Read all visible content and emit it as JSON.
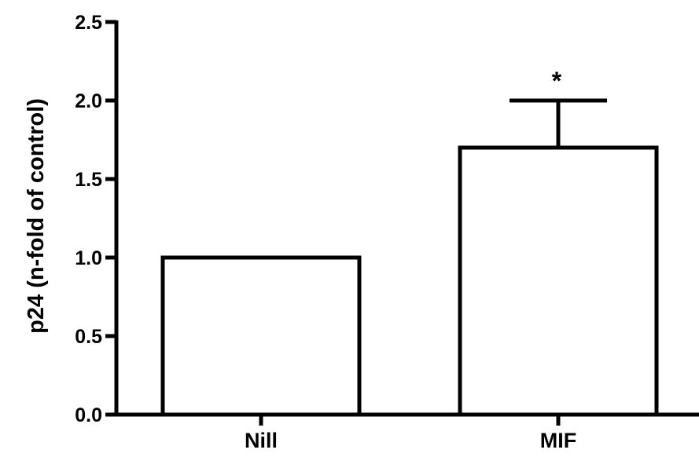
{
  "chart_data": {
    "type": "bar",
    "categories": [
      "Nill",
      "MIF"
    ],
    "values": [
      1.0,
      1.7
    ],
    "error_upper": [
      null,
      2.0
    ],
    "annotations": [
      null,
      "*"
    ],
    "ylabel": "p24 (n-fold of control)",
    "ylim": [
      0,
      2.5
    ],
    "yticks": [
      "0.0",
      "0.5",
      "1.0",
      "1.5",
      "2.0",
      "2.5"
    ],
    "grid": false,
    "bar_fill": "#ffffff",
    "bar_stroke": "#000000"
  }
}
